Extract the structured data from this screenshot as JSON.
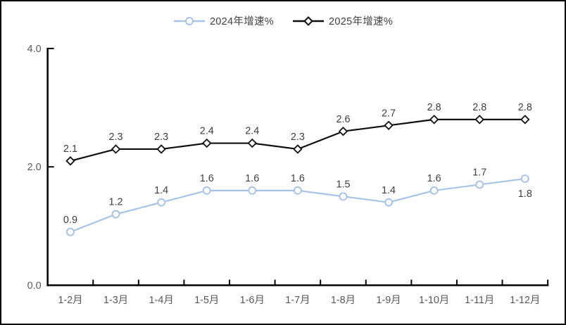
{
  "chart_data": {
    "type": "line",
    "title": "",
    "xlabel": "",
    "ylabel": "",
    "categories": [
      "1-2月",
      "1-3月",
      "1-4月",
      "1-5月",
      "1-6月",
      "1-7月",
      "1-8月",
      "1-9月",
      "1-10月",
      "1-11月",
      "1-12月"
    ],
    "series": [
      {
        "name": "2024年增速%",
        "marker": "circle",
        "color": "#a7c3e5",
        "values": [
          0.9,
          1.2,
          1.4,
          1.6,
          1.6,
          1.6,
          1.5,
          1.4,
          1.6,
          1.7,
          1.8
        ]
      },
      {
        "name": "2025年增速%",
        "marker": "diamond",
        "color": "#0d0d0d",
        "values": [
          2.1,
          2.3,
          2.3,
          2.4,
          2.4,
          2.3,
          2.6,
          2.7,
          2.8,
          2.8,
          2.8
        ]
      }
    ],
    "ylim": [
      0,
      4
    ],
    "yticks": [
      0,
      2,
      4
    ],
    "ytick_labels": [
      "0.0",
      "2.0",
      "4.0"
    ],
    "grid": false,
    "data_labels": true,
    "label_overrides": [
      {
        "series": 0,
        "index": 10,
        "position": "below"
      }
    ],
    "legend_position": "top-center",
    "colors": {
      "axis": "#000000",
      "tick_label": "#595959",
      "data_label": "#404040",
      "marker_fill": "#ffffff",
      "background": "#ffffff",
      "border": "#000000"
    }
  }
}
